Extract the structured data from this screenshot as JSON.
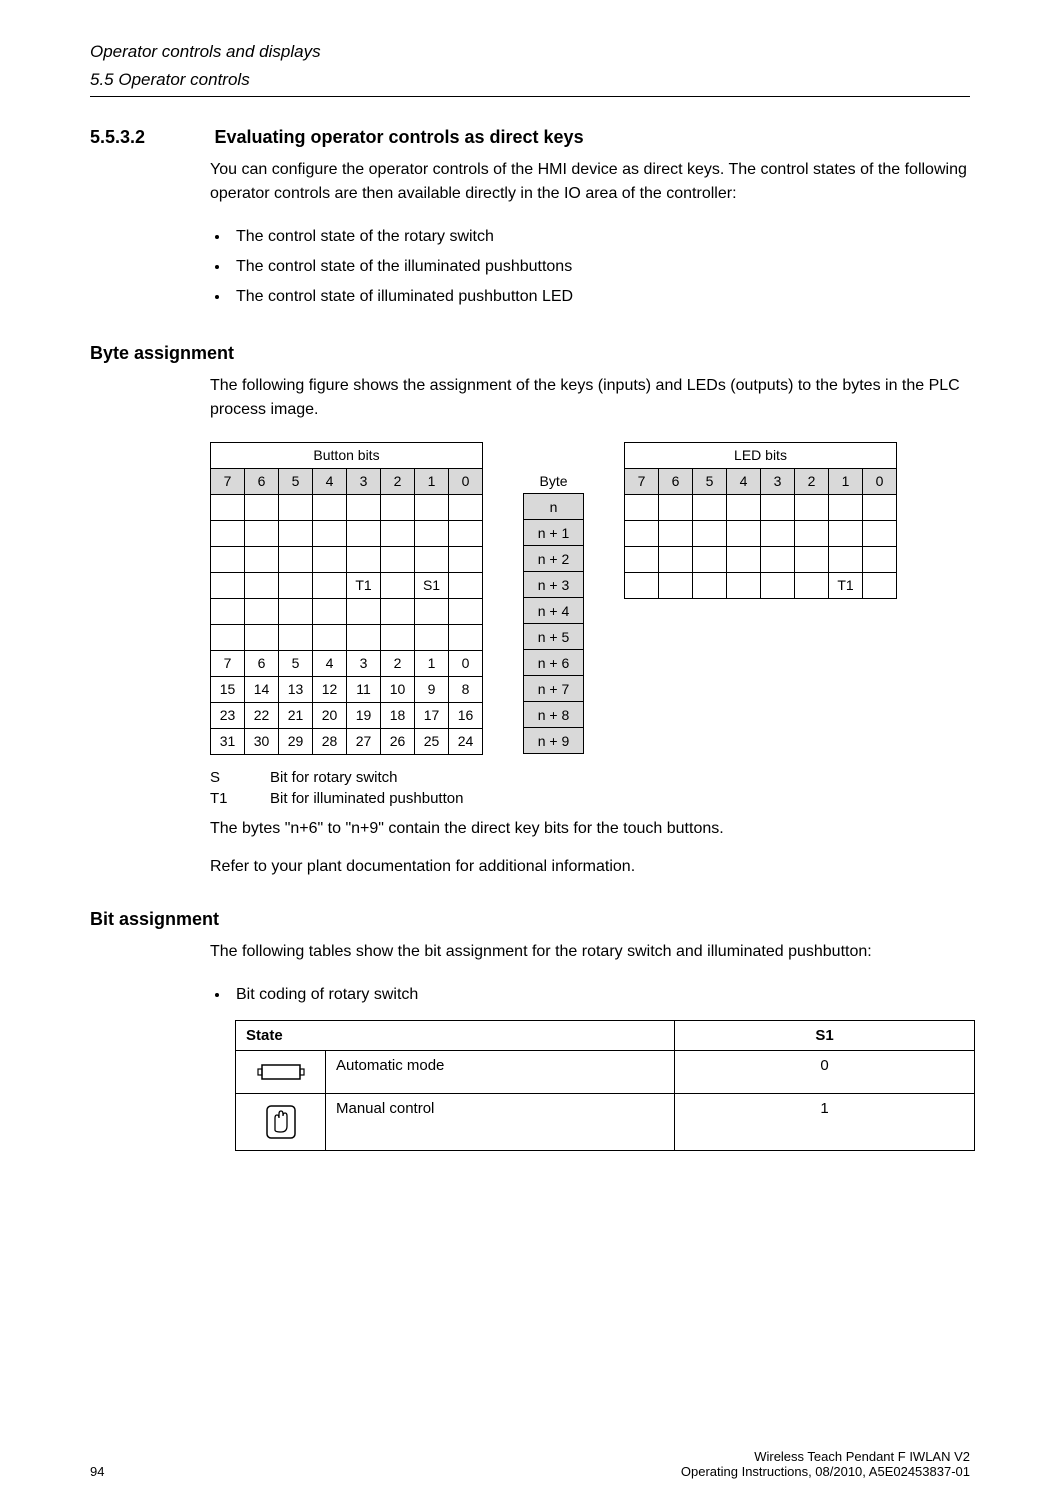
{
  "header": {
    "chapter": "Operator controls and displays",
    "section": "5.5 Operator controls"
  },
  "sec": {
    "num": "5.5.3.2",
    "title": "Evaluating operator controls as direct keys",
    "intro": "You can configure the operator controls of the HMI device as direct keys. The control states of the following operator controls are then available directly in the IO area of the controller:",
    "bullets": [
      "The control state of the rotary switch",
      "The control state of the illuminated pushbuttons",
      "The control state of illuminated pushbutton LED"
    ]
  },
  "byteAssign": {
    "heading": "Byte assignment",
    "text": "The following figure shows the assignment of the keys (inputs) and LEDs (outputs) to the bytes in the PLC process image.",
    "buttonTitle": "Button bits",
    "ledTitle": "LED bits",
    "byteLabel": "Byte",
    "bitHeader": [
      "7",
      "6",
      "5",
      "4",
      "3",
      "2",
      "1",
      "0"
    ],
    "byteRows": [
      "n",
      "n + 1",
      "n + 2",
      "n + 3",
      "n + 4",
      "n + 5",
      "n + 6",
      "n + 7",
      "n + 8",
      "n + 9"
    ],
    "buttonRows": [
      [
        "",
        "",
        "",
        "",
        "",
        "",
        "",
        ""
      ],
      [
        "",
        "",
        "",
        "",
        "",
        "",
        "",
        ""
      ],
      [
        "",
        "",
        "",
        "",
        "",
        "",
        "",
        ""
      ],
      [
        "",
        "",
        "",
        "",
        "T1",
        "",
        "S1",
        ""
      ],
      [
        "",
        "",
        "",
        "",
        "",
        "",
        "",
        ""
      ],
      [
        "",
        "",
        "",
        "",
        "",
        "",
        "",
        ""
      ],
      [
        "7",
        "6",
        "5",
        "4",
        "3",
        "2",
        "1",
        "0"
      ],
      [
        "15",
        "14",
        "13",
        "12",
        "11",
        "10",
        "9",
        "8"
      ],
      [
        "23",
        "22",
        "21",
        "20",
        "19",
        "18",
        "17",
        "16"
      ],
      [
        "31",
        "30",
        "29",
        "28",
        "27",
        "26",
        "25",
        "24"
      ]
    ],
    "ledRows": [
      [
        "",
        "",
        "",
        "",
        "",
        "",
        "",
        ""
      ],
      [
        "",
        "",
        "",
        "",
        "",
        "",
        "",
        ""
      ],
      [
        "",
        "",
        "",
        "",
        "",
        "",
        "",
        ""
      ],
      [
        "",
        "",
        "",
        "",
        "",
        "",
        "T1",
        ""
      ]
    ],
    "legend": [
      {
        "sym": "S",
        "desc": "Bit for rotary switch"
      },
      {
        "sym": "T1",
        "desc": "Bit for illuminated pushbutton"
      }
    ],
    "after1": "The bytes \"n+6\" to \"n+9\" contain the direct key bits for the touch buttons.",
    "after2": "Refer to your plant documentation for additional information."
  },
  "bitAssign": {
    "heading": "Bit assignment",
    "text": "The following tables show the bit assignment for the rotary switch and illuminated pushbutton:",
    "bullet": "Bit coding of rotary switch",
    "table": {
      "stateHdr": "State",
      "valHdr": "S1",
      "rows": [
        {
          "icon": "auto",
          "label": "Automatic mode",
          "val": "0"
        },
        {
          "icon": "manual",
          "label": "Manual control",
          "val": "1"
        }
      ]
    }
  },
  "footer": {
    "page": "94",
    "prod": "Wireless Teach Pendant F IWLAN V2",
    "doc": "Operating Instructions, 08/2010, A5E02453837-01"
  }
}
